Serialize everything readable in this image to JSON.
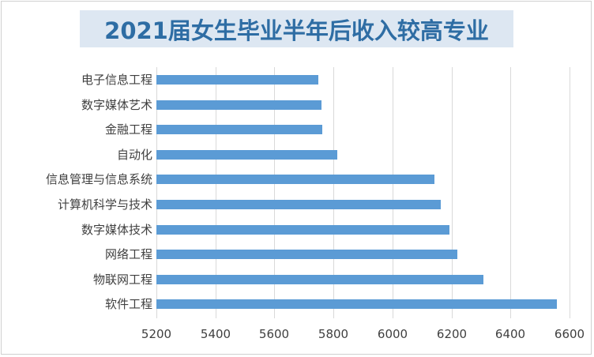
{
  "title": "2021届女生毕业半年后收入较高专业",
  "colors": {
    "bar": "#5b9bd5",
    "title_bg": "#dde7f2",
    "title_text": "#2e6da4",
    "grid": "#d9d9d9"
  },
  "chart_data": {
    "type": "bar",
    "orientation": "horizontal",
    "title": "2021届女生毕业半年后收入较高专业",
    "xlabel": "",
    "ylabel": "",
    "xlim": [
      5200,
      6600
    ],
    "xticks": [
      "5200",
      "5400",
      "5600",
      "5800",
      "6000",
      "6200",
      "6400",
      "6600"
    ],
    "grid": true,
    "legend": null,
    "categories": [
      "电子信息工程",
      "数字媒体艺术",
      "金融工程",
      "自动化",
      "信息管理与信息系统",
      "计算机科学与技术",
      "数字媒体技术",
      "网络工程",
      "物联网工程",
      "软件工程"
    ],
    "values": [
      5748,
      5759,
      5762,
      5812,
      6141,
      6165,
      6192,
      6221,
      6307,
      6556
    ]
  }
}
